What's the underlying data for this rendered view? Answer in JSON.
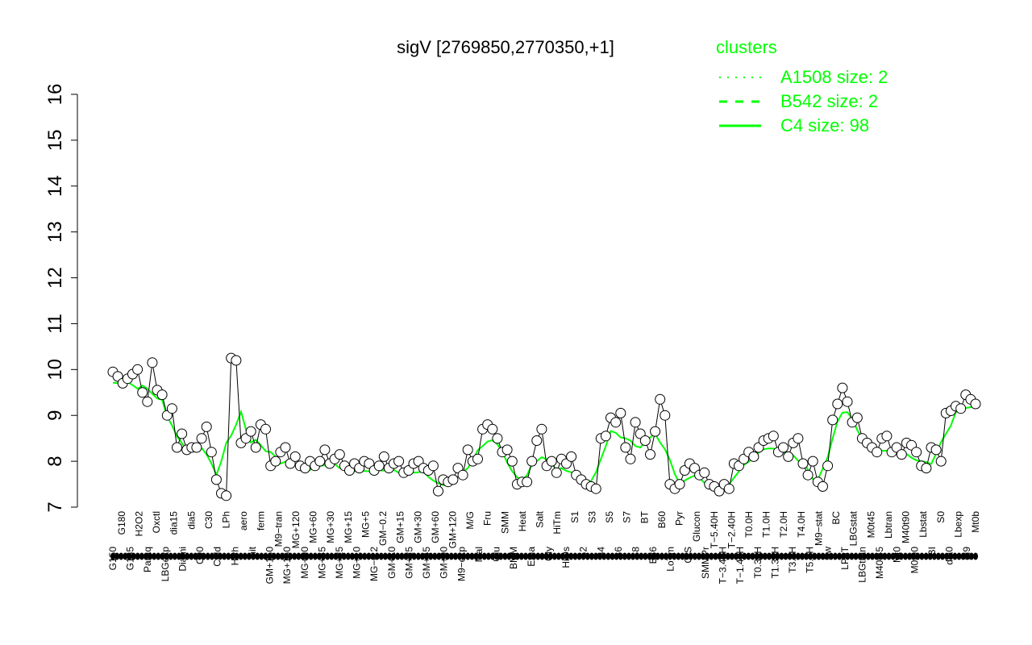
{
  "chart_data": {
    "type": "line",
    "title": "sigV [2769850,2770350,+1]",
    "xlabel": "",
    "ylabel": "",
    "ylim": [
      7,
      16
    ],
    "yticks": [
      7,
      8,
      9,
      10,
      11,
      12,
      13,
      14,
      15,
      16
    ],
    "grid": false,
    "legend": {
      "title": "clusters",
      "placement": "top-right",
      "color": "#00ff00",
      "entries": [
        {
          "label": "A1508 size: 2",
          "style": "dotted"
        },
        {
          "label": "B542 size: 2",
          "style": "dashed"
        },
        {
          "label": "C4 size: 98",
          "style": "solid"
        }
      ]
    },
    "x_tick_labels": [
      "G150",
      "G180",
      "G135",
      "H2O2",
      "Paraq",
      "Oxctl",
      "LBGexp",
      "dia15",
      "Diami",
      "dia5",
      "C90",
      "C30",
      "Cold",
      "LPh",
      "HPh",
      "aero",
      "nit",
      "ferm",
      "GM+150",
      "M9−tran",
      "MG+150",
      "MG+120",
      "MG+90",
      "MG+60",
      "MG+45",
      "MG+30",
      "MG+25",
      "MG+15",
      "MG+10",
      "MG+5",
      "MG−0.2",
      "GM−0.2",
      "GM+10",
      "GM+15",
      "GM+25",
      "GM+30",
      "GM+45",
      "GM+60",
      "GM+90",
      "GM+120",
      "M9−exp",
      "M/G",
      "Mal",
      "Fru",
      "Glu",
      "SMM",
      "BMM",
      "Heat",
      "Etha",
      "Salt",
      "Gly",
      "HiTm",
      "HiOs",
      "S1",
      "S2",
      "S3",
      "S4",
      "S5",
      "S6",
      "S7",
      "S8",
      "BT",
      "B36",
      "B60",
      "LoTm",
      "Pyr",
      "G/S",
      "Glucon",
      "SMMPr",
      "T−5.40H",
      "T−3.40H",
      "T−2.40H",
      "T−1.40H",
      "T0.0H",
      "T0.30H",
      "T1.0H",
      "T1.30H",
      "T2.0H",
      "T3.0H",
      "T4.0H",
      "T5.0H",
      "M9−stat",
      "Sw",
      "BC",
      "LPhT",
      "LBGstat",
      "LBGtran",
      "M0t45",
      "M40t45",
      "Lbtran",
      "Mt0",
      "M40t90",
      "M0t90",
      "Lbstat",
      "BI",
      "S0",
      "dia0",
      "Lbexp",
      "M9",
      "Mt0b"
    ],
    "series": [
      {
        "values": [
          9.95,
          9.85,
          9.7,
          9.8,
          9.9,
          10.0,
          9.5,
          9.3,
          10.15,
          9.55,
          9.45,
          9.0,
          9.15,
          8.3,
          8.6,
          8.25,
          8.3,
          8.3,
          8.5,
          8.75,
          8.2,
          7.6,
          7.3,
          7.25,
          10.25,
          10.2,
          8.4,
          8.5,
          8.65,
          8.3,
          8.8,
          8.7,
          7.9,
          8.0,
          8.2,
          8.3,
          7.95,
          8.1,
          7.9,
          7.85,
          8.0,
          7.9,
          8.0,
          8.25,
          7.95,
          8.05,
          8.15,
          7.9,
          7.8,
          7.95,
          7.85,
          8.0,
          7.95,
          7.8,
          7.9,
          8.1,
          7.85,
          7.95,
          8.0,
          7.75,
          7.8,
          7.95,
          8.0,
          7.85,
          7.8,
          7.9,
          7.35,
          7.6,
          7.55,
          7.6,
          7.85,
          7.7,
          8.25,
          8.0,
          8.05,
          8.7,
          8.8,
          8.7,
          8.5,
          8.2,
          8.25,
          8.0,
          7.5,
          7.55,
          7.55,
          8.0,
          8.45,
          8.7,
          7.9,
          8.0,
          7.75,
          8.05,
          7.95,
          8.1,
          7.7,
          7.6,
          7.5,
          7.45,
          7.4,
          8.5,
          8.55,
          8.95,
          8.85,
          9.05,
          8.3,
          8.05,
          8.85,
          8.6,
          8.45,
          8.15,
          8.65,
          9.35,
          9.0,
          7.5,
          7.4,
          7.5,
          7.8,
          7.95,
          7.85,
          7.7,
          7.75,
          7.5,
          7.45,
          7.35,
          7.5,
          7.4,
          7.95,
          7.9,
          8.05,
          8.2,
          8.1,
          8.3,
          8.45,
          8.5,
          8.55,
          8.2,
          8.3,
          8.1,
          8.4,
          8.5,
          7.95,
          7.7,
          8.0,
          7.55,
          7.45,
          7.9,
          8.9,
          9.25,
          9.6,
          9.3,
          8.85,
          8.95,
          8.5,
          8.4,
          8.3,
          8.2,
          8.5,
          8.55,
          8.2,
          8.3,
          8.15,
          8.4,
          8.35,
          8.2,
          7.9,
          7.85,
          8.3,
          8.25,
          8.0,
          9.05,
          9.1,
          9.2,
          9.15,
          9.45,
          9.35,
          9.25
        ]
      }
    ]
  }
}
